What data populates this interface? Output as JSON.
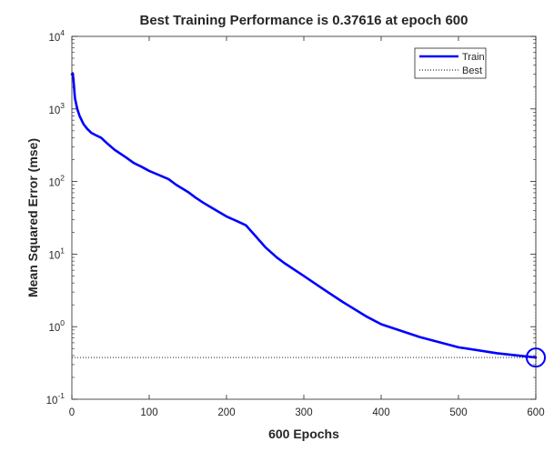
{
  "chart_data": {
    "type": "line",
    "title": "Best Training Performance is 0.37616 at epoch 600",
    "xlabel": "600 Epochs",
    "ylabel": "Mean Squared Error  (mse)",
    "xlim": [
      0,
      600
    ],
    "ylim": [
      0.1,
      10000
    ],
    "yscale": "log",
    "grid": false,
    "legend_position": "top-right",
    "x_ticks": [
      0,
      100,
      200,
      300,
      400,
      500,
      600
    ],
    "y_tick_exponents": [
      -1,
      0,
      1,
      2,
      3,
      4
    ],
    "series": [
      {
        "name": "Train",
        "color": "#0000ff",
        "style": "solid",
        "x": [
          0,
          1,
          2,
          4,
          7,
          10,
          15,
          20,
          25,
          30,
          38,
          45,
          55,
          70,
          80,
          90,
          100,
          115,
          125,
          135,
          150,
          160,
          170,
          180,
          200,
          215,
          225,
          235,
          250,
          265,
          275,
          300,
          325,
          350,
          380,
          400,
          450,
          500,
          550,
          600
        ],
        "y": [
          3000,
          3100,
          2600,
          1400,
          1000,
          800,
          620,
          530,
          470,
          440,
          400,
          340,
          275,
          215,
          180,
          160,
          140,
          120,
          108,
          90,
          72,
          60,
          51,
          44,
          33,
          28,
          25,
          19,
          12.5,
          9.0,
          7.5,
          5.0,
          3.3,
          2.2,
          1.4,
          1.08,
          0.72,
          0.52,
          0.43,
          0.37616
        ]
      },
      {
        "name": "Best",
        "color": "#000000",
        "style": "dotted"
      }
    ],
    "best": {
      "epoch": 600,
      "value": 0.37616
    }
  }
}
